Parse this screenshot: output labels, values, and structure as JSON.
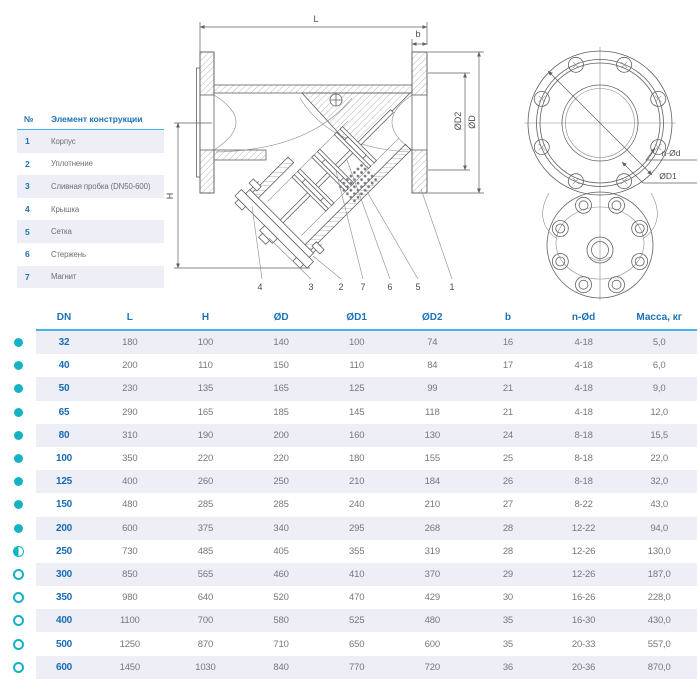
{
  "drawing": {
    "dim_labels": {
      "L": "L",
      "b": "b",
      "H": "H",
      "dD": "ØD",
      "dD2": "ØD2",
      "dD1": "ØD1",
      "nOd": "n-Ød"
    },
    "callouts": [
      "4",
      "3",
      "2",
      "7",
      "6",
      "5",
      "1"
    ]
  },
  "legend": {
    "headers": {
      "num": "№",
      "name": "Элемент конструкции"
    },
    "items": [
      {
        "num": "1",
        "name": "Корпус"
      },
      {
        "num": "2",
        "name": "Уплотнение"
      },
      {
        "num": "3",
        "name": "Сливная пробка  (DN50-600)"
      },
      {
        "num": "4",
        "name": "Крышка"
      },
      {
        "num": "5",
        "name": "Сетка"
      },
      {
        "num": "6",
        "name": "Стержень"
      },
      {
        "num": "7",
        "name": "Магнит"
      }
    ]
  },
  "table": {
    "headers": [
      "DN",
      "L",
      "H",
      "ØD",
      "ØD1",
      "ØD2",
      "b",
      "n-Ød",
      "Масса, кг"
    ],
    "rows": [
      {
        "bullet": "filled",
        "cells": [
          "32",
          "180",
          "100",
          "140",
          "100",
          "74",
          "16",
          "4-18",
          "5,0"
        ]
      },
      {
        "bullet": "filled",
        "cells": [
          "40",
          "200",
          "110",
          "150",
          "110",
          "84",
          "17",
          "4-18",
          "6,0"
        ]
      },
      {
        "bullet": "filled",
        "cells": [
          "50",
          "230",
          "135",
          "165",
          "125",
          "99",
          "21",
          "4-18",
          "9,0"
        ]
      },
      {
        "bullet": "filled",
        "cells": [
          "65",
          "290",
          "165",
          "185",
          "145",
          "118",
          "21",
          "4-18",
          "12,0"
        ]
      },
      {
        "bullet": "filled",
        "cells": [
          "80",
          "310",
          "190",
          "200",
          "160",
          "130",
          "24",
          "8-18",
          "15,5"
        ]
      },
      {
        "bullet": "filled",
        "cells": [
          "100",
          "350",
          "220",
          "220",
          "180",
          "155",
          "25",
          "8-18",
          "22,0"
        ]
      },
      {
        "bullet": "filled",
        "cells": [
          "125",
          "400",
          "260",
          "250",
          "210",
          "184",
          "26",
          "8-18",
          "32,0"
        ]
      },
      {
        "bullet": "filled",
        "cells": [
          "150",
          "480",
          "285",
          "285",
          "240",
          "210",
          "27",
          "8-22",
          "43,0"
        ]
      },
      {
        "bullet": "filled",
        "cells": [
          "200",
          "600",
          "375",
          "340",
          "295",
          "268",
          "28",
          "12-22",
          "94,0"
        ]
      },
      {
        "bullet": "half",
        "cells": [
          "250",
          "730",
          "485",
          "405",
          "355",
          "319",
          "28",
          "12-26",
          "130,0"
        ]
      },
      {
        "bullet": "open",
        "cells": [
          "300",
          "850",
          "565",
          "460",
          "410",
          "370",
          "29",
          "12-26",
          "187,0"
        ]
      },
      {
        "bullet": "open",
        "cells": [
          "350",
          "980",
          "640",
          "520",
          "470",
          "429",
          "30",
          "16-26",
          "228,0"
        ]
      },
      {
        "bullet": "open",
        "cells": [
          "400",
          "1100",
          "700",
          "580",
          "525",
          "480",
          "35",
          "16-30",
          "430,0"
        ]
      },
      {
        "bullet": "open",
        "cells": [
          "500",
          "1250",
          "870",
          "710",
          "650",
          "600",
          "35",
          "20-33",
          "557,0"
        ]
      },
      {
        "bullet": "open",
        "cells": [
          "600",
          "1450",
          "1030",
          "840",
          "770",
          "720",
          "36",
          "20-36",
          "870,0"
        ]
      }
    ]
  },
  "colors": {
    "accent_blue": "#1a72b8",
    "underline_cyan": "#45b5e8",
    "bullet_teal": "#14b3c4",
    "row_lavender": "#edeef6",
    "text_gray": "#6f7074",
    "line_gray": "#5f6063"
  }
}
